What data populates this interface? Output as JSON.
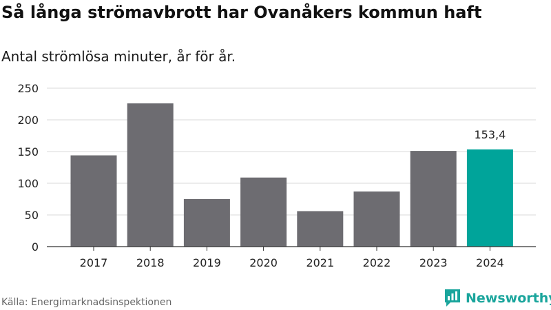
{
  "header": {
    "title": "Så långa strömavbrott har Ovanåkers kommun haft",
    "subtitle": "Antal strömlösa minuter, år för år."
  },
  "footer": {
    "source": "Källa: Energimarknadsinspektionen",
    "brand": "Newsworthy"
  },
  "colors": {
    "bar": "#6d6c71",
    "highlight": "#00a49a",
    "grid": "#d9d9d9",
    "axis": "#333333",
    "brand": "#1aa59c"
  },
  "chart_data": {
    "type": "bar",
    "title": "Så långa strömavbrott har Ovanåkers kommun haft",
    "subtitle": "Antal strömlösa minuter, år för år.",
    "xlabel": "",
    "ylabel": "",
    "categories": [
      "2017",
      "2018",
      "2019",
      "2020",
      "2021",
      "2022",
      "2023",
      "2024"
    ],
    "values": [
      144,
      226,
      75,
      109,
      56,
      87,
      151,
      153.4
    ],
    "highlight_index": 7,
    "data_labels": {
      "7": "153,4"
    },
    "ylim": [
      0,
      250
    ],
    "yticks": [
      0,
      50,
      100,
      150,
      200,
      250
    ],
    "grid": true,
    "legend": "none"
  }
}
